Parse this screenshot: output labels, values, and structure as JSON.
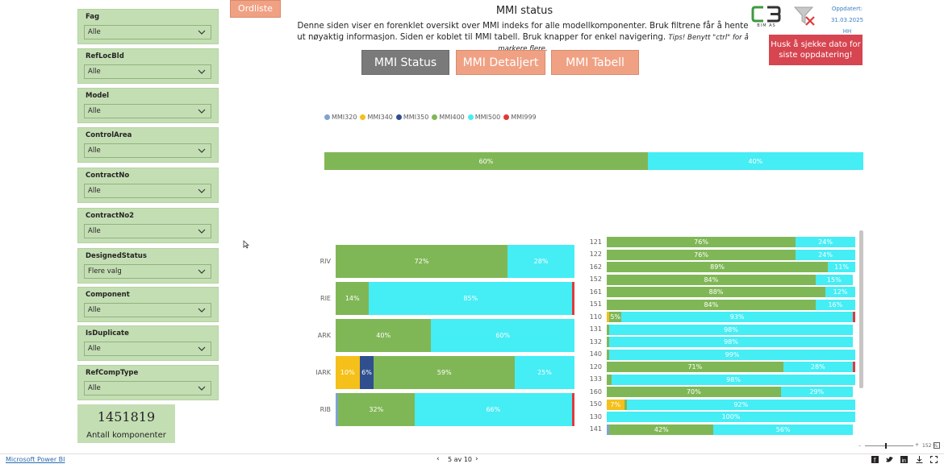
{
  "ordliste_label": "Ordliste",
  "title": "MMI status",
  "description": "Denne siden viser en forenklet oversikt over MMI indeks for alle modellkomponenter. Bruk filtrene får å hente ut nøyaktig informasjon. Siden er koblet til MMI tabell. Bruk knapper for enkel navigering.",
  "tips": "Tips! Benytt \"ctrl\" for å markere flere.",
  "nav": {
    "status": "MMI Status",
    "detaljert": "MMI Detaljert",
    "tabell": "MMI Tabell"
  },
  "logo_text": "BIM AS",
  "updated": {
    "label": "Oppdatert:",
    "date": "31.03.2025",
    "by": "HH"
  },
  "reminder": "Husk å sjekke dato for siste oppdatering!",
  "slicers": [
    {
      "label": "Fag",
      "value": "Alle"
    },
    {
      "label": "RefLocBld",
      "value": "Alle"
    },
    {
      "label": "Model",
      "value": "Alle"
    },
    {
      "label": "ControlArea",
      "value": "Alle"
    },
    {
      "label": "ContractNo",
      "value": "Alle"
    },
    {
      "label": "ContractNo2",
      "value": "Alle"
    },
    {
      "label": "DesignedStatus",
      "value": "Flere valg"
    },
    {
      "label": "Component",
      "value": "Alle"
    },
    {
      "label": "IsDuplicate",
      "value": "Alle"
    },
    {
      "label": "RefCompType",
      "value": "Alle"
    }
  ],
  "kpi": {
    "value": "1451819",
    "caption": "Antall komponenter"
  },
  "colors": {
    "MMI320": "#7ea3d0",
    "MMI340": "#f5c01a",
    "MMI350": "#2f4f8f",
    "MMI400": "#80b756",
    "MMI500": "#45edf5",
    "MMI999": "#e03a3a"
  },
  "chart_data": [
    {
      "type": "bar",
      "orientation": "horizontal-stacked-100",
      "legend": [
        "MMI320",
        "MMI340",
        "MMI350",
        "MMI400",
        "MMI500",
        "MMI999"
      ],
      "legend_position": "top-left",
      "categories": [
        ""
      ],
      "series": [
        {
          "name": "MMI320",
          "values": [
            0
          ]
        },
        {
          "name": "MMI340",
          "values": [
            0
          ]
        },
        {
          "name": "MMI350",
          "values": [
            0
          ]
        },
        {
          "name": "MMI400",
          "values": [
            60
          ]
        },
        {
          "name": "MMI500",
          "values": [
            40
          ]
        },
        {
          "name": "MMI999",
          "values": [
            0
          ]
        }
      ],
      "labels": [
        [
          "",
          "",
          "",
          "60%",
          "40%",
          ""
        ]
      ]
    },
    {
      "type": "bar",
      "orientation": "horizontal-stacked-100",
      "categories": [
        "RIV",
        "RIE",
        "ARK",
        "IARK",
        "RIB"
      ],
      "series": [
        {
          "name": "MMI320",
          "values": [
            0,
            0,
            0,
            0,
            1
          ]
        },
        {
          "name": "MMI340",
          "values": [
            0,
            0,
            0,
            10,
            0
          ]
        },
        {
          "name": "MMI350",
          "values": [
            0,
            0,
            0,
            6,
            0
          ]
        },
        {
          "name": "MMI400",
          "values": [
            72,
            14,
            40,
            59,
            32
          ]
        },
        {
          "name": "MMI500",
          "values": [
            28,
            85,
            60,
            25,
            66
          ]
        },
        {
          "name": "MMI999",
          "values": [
            0,
            1,
            0,
            0,
            1
          ]
        }
      ],
      "labels": [
        [
          "",
          "",
          "",
          "72%",
          "28%",
          ""
        ],
        [
          "",
          "",
          "",
          "14%",
          "85%",
          ""
        ],
        [
          "",
          "",
          "",
          "40%",
          "60%",
          ""
        ],
        [
          "",
          "10%",
          "6%",
          "59%",
          "25%",
          ""
        ],
        [
          "",
          "",
          "",
          "32%",
          "66%",
          ""
        ]
      ]
    },
    {
      "type": "bar",
      "orientation": "horizontal-stacked-100",
      "categories": [
        "121",
        "122",
        "162",
        "152",
        "161",
        "151",
        "110",
        "131",
        "132",
        "140",
        "120",
        "133",
        "160",
        "150",
        "130",
        "141"
      ],
      "series": [
        {
          "name": "MMI320",
          "values": [
            0,
            0,
            0,
            0,
            0,
            0,
            0,
            0,
            0,
            0,
            0,
            0,
            0,
            0,
            0,
            1
          ]
        },
        {
          "name": "MMI340",
          "values": [
            0,
            0,
            0,
            0,
            0,
            0,
            1,
            0,
            0,
            0,
            0,
            0,
            0,
            7,
            0,
            0
          ]
        },
        {
          "name": "MMI350",
          "values": [
            0,
            0,
            0,
            0,
            0,
            0,
            0,
            0,
            0,
            0,
            0,
            0,
            0,
            0,
            0,
            0
          ]
        },
        {
          "name": "MMI400",
          "values": [
            76,
            76,
            89,
            84,
            88,
            84,
            5,
            1,
            1,
            1,
            71,
            2,
            70,
            1,
            0,
            42
          ]
        },
        {
          "name": "MMI500",
          "values": [
            24,
            24,
            11,
            15,
            12,
            16,
            93,
            98,
            98,
            99,
            28,
            98,
            29,
            92,
            100,
            56
          ]
        },
        {
          "name": "MMI999",
          "values": [
            0,
            0,
            0,
            0,
            0,
            0,
            1,
            0,
            0,
            0,
            1,
            0,
            0,
            0,
            0,
            0
          ]
        }
      ],
      "labels": [
        [
          "",
          "",
          "",
          "76%",
          "24%",
          ""
        ],
        [
          "",
          "",
          "",
          "76%",
          "24%",
          ""
        ],
        [
          "",
          "",
          "",
          "89%",
          "11%",
          ""
        ],
        [
          "",
          "",
          "",
          "84%",
          "15%",
          ""
        ],
        [
          "",
          "",
          "",
          "88%",
          "12%",
          ""
        ],
        [
          "",
          "",
          "",
          "84%",
          "16%",
          ""
        ],
        [
          "",
          "",
          "",
          "5%",
          "93%",
          ""
        ],
        [
          "",
          "",
          "",
          "",
          "98%",
          ""
        ],
        [
          "",
          "",
          "",
          "",
          "98%",
          ""
        ],
        [
          "",
          "",
          "",
          "",
          "99%",
          ""
        ],
        [
          "",
          "",
          "",
          "71%",
          "28%",
          ""
        ],
        [
          "",
          "",
          "",
          "",
          "98%",
          ""
        ],
        [
          "",
          "",
          "",
          "70%",
          "29%",
          ""
        ],
        [
          "",
          "7%",
          "",
          "",
          "92%",
          ""
        ],
        [
          "",
          "",
          "",
          "",
          "100%",
          ""
        ],
        [
          "",
          "",
          "",
          "42%",
          "56%",
          ""
        ]
      ]
    }
  ],
  "footer": {
    "powerbi": "Microsoft Power BI",
    "page": "5 av 10",
    "zoom": "152 %"
  }
}
